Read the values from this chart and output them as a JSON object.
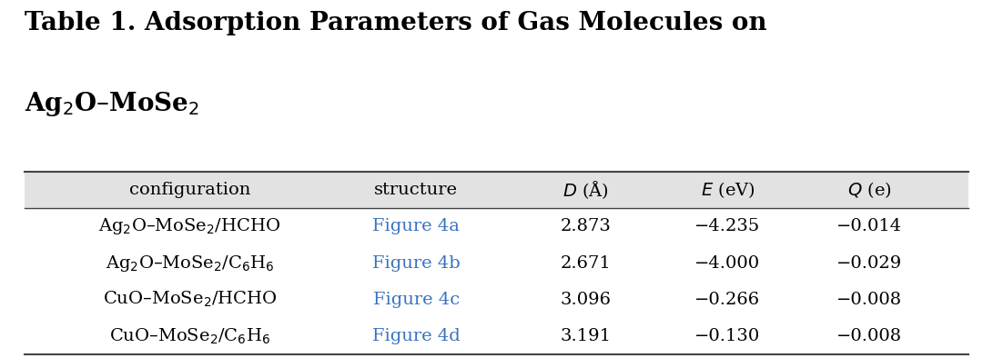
{
  "title_part1": "Table 1. Adsorption Parameters of Gas Molecules on\nAg",
  "title_line1": "Table 1. Adsorption Parameters of Gas Molecules on",
  "title_line2": "Ag$_2$O–MoSe$_2$",
  "col_headers": [
    "configuration",
    "structure",
    "$D$ (Å)",
    "$E$ (eV)",
    "$Q$ (e)"
  ],
  "rows": [
    {
      "config": "Ag$_2$O–MoSe$_2$/HCHO",
      "structure": "Figure 4a",
      "D": "2.873",
      "E": "−4.235",
      "Q": "−0.014"
    },
    {
      "config": "Ag$_2$O–MoSe$_2$/C$_6$H$_6$",
      "structure": "Figure 4b",
      "D": "2.671",
      "E": "−4.000",
      "Q": "−0.029"
    },
    {
      "config": "CuO–MoSe$_2$/HCHO",
      "structure": "Figure 4c",
      "D": "3.096",
      "E": "−0.266",
      "Q": "−0.008"
    },
    {
      "config": "CuO–MoSe$_2$/C$_6$H$_6$",
      "structure": "Figure 4d",
      "D": "3.191",
      "E": "−0.130",
      "Q": "−0.008"
    }
  ],
  "header_bg": "#e2e2e2",
  "row_bg": "#ffffff",
  "link_color": "#3a72c0",
  "text_color": "#000000",
  "title_color": "#000000",
  "bg_color": "#ffffff",
  "header_fontsize": 14,
  "row_fontsize": 14,
  "title_fontsize": 20
}
